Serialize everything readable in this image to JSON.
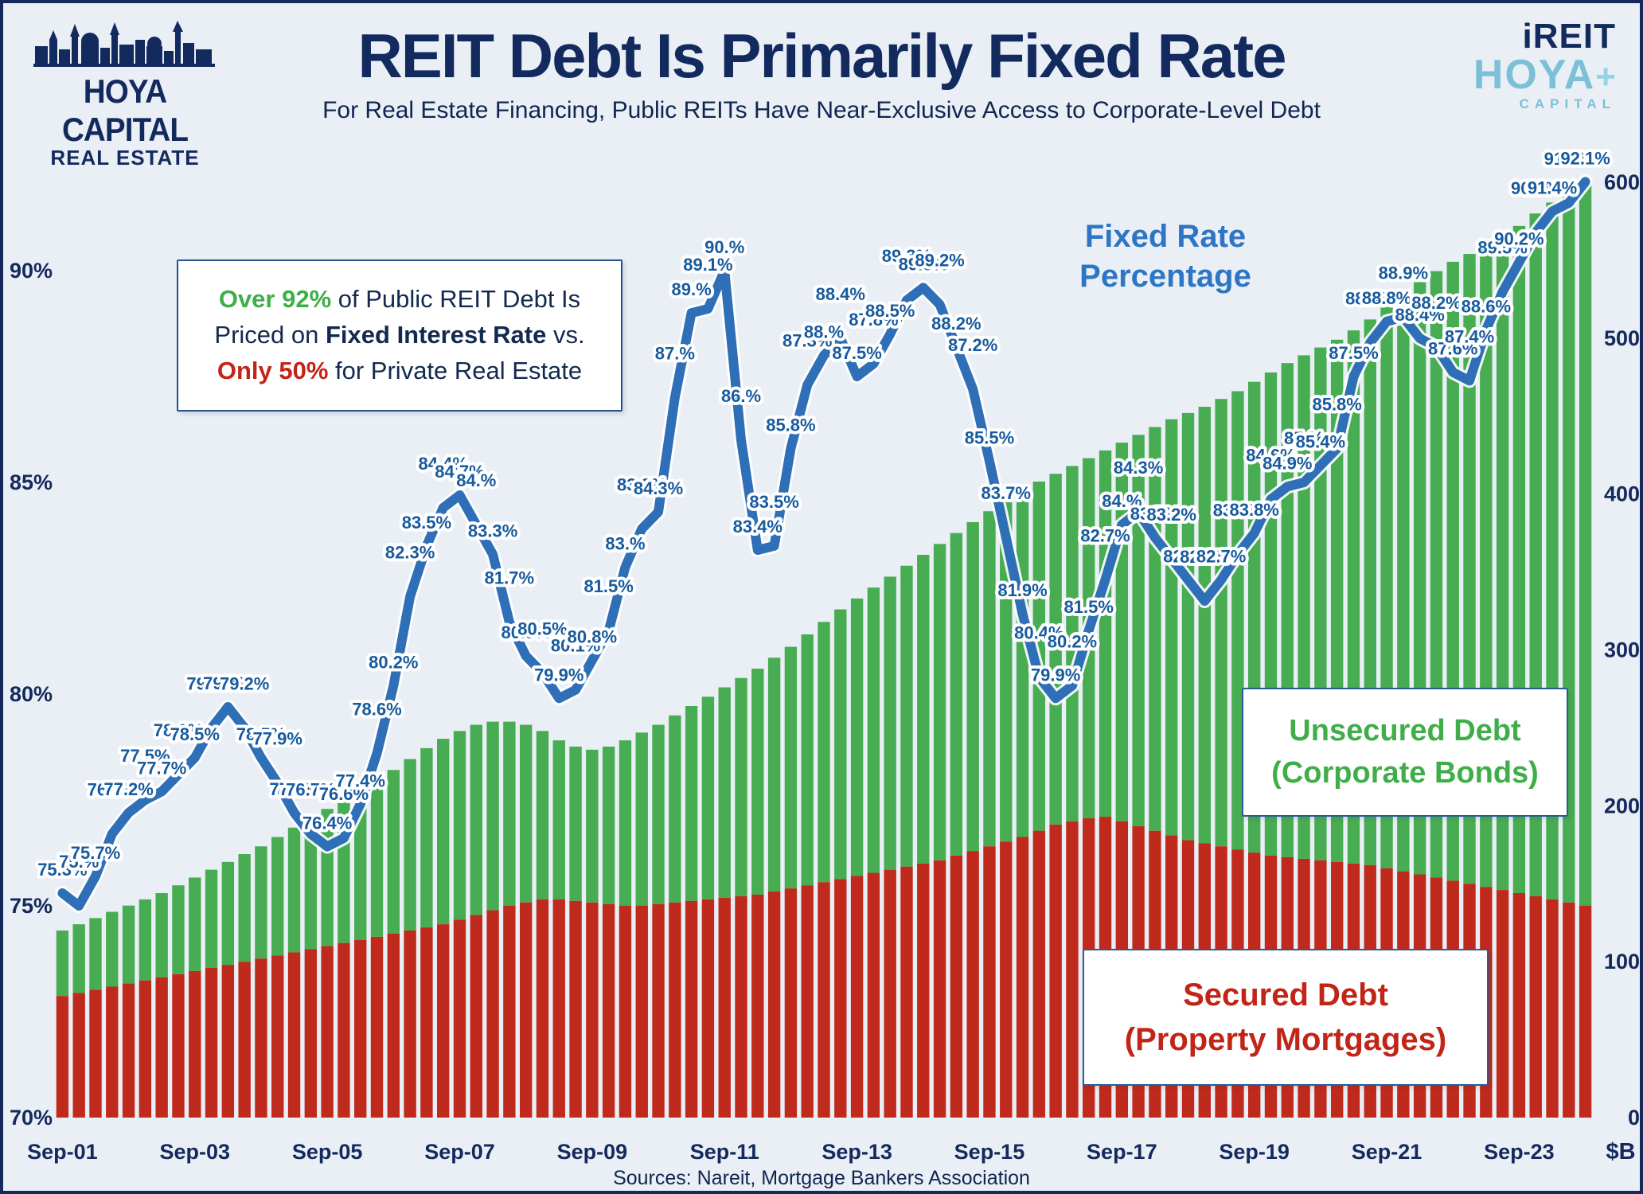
{
  "header": {
    "logo_left": {
      "name": "HOYA CAPITAL",
      "sub": "REAL ESTATE"
    },
    "title": "REIT Debt Is Primarily Fixed Rate",
    "subtitle": "For Real Estate Financing, Public REITs Have Near-Exclusive Access to Corporate-Level Debt",
    "logo_right": {
      "line1": "iREIT",
      "plus": "+",
      "line2": "HOYA",
      "line3": "CAPITAL"
    }
  },
  "annotation": {
    "l1a": "Over 92%",
    "l1b": " of Public REIT Debt Is",
    "l2a": "Priced on ",
    "l2b": "Fixed Interest Rate",
    "l2c": " vs.",
    "l3a": "Only 50%",
    "l3b": " for Private Real Estate"
  },
  "labels": {
    "fixed_rate_line1": "Fixed Rate",
    "fixed_rate_line2": "Percentage",
    "unsecured_line1": "Unsecured Debt",
    "unsecured_line2": "(Corporate Bonds)",
    "secured_line1": "Secured Debt",
    "secured_line2": "(Property Mortgages)"
  },
  "footer": {
    "sources": "Sources: Nareit, Mortgage Bankers Association"
  },
  "colors": {
    "line_blue": "#2f6fb7",
    "label_blue": "#175a9e",
    "bar_green": "#48ad52",
    "bar_red": "#c02a1d",
    "axis_navy": "#14295c"
  },
  "chart_data": {
    "type": "combo-stacked-bar-line",
    "title": "REIT Debt Is Primarily Fixed Rate",
    "x_period": "quarterly",
    "x_start": "Sep-01",
    "x_end": "Sep-24",
    "x_ticks": [
      {
        "label": "Sep-01",
        "index": 0
      },
      {
        "label": "Sep-03",
        "index": 8
      },
      {
        "label": "Sep-05",
        "index": 16
      },
      {
        "label": "Sep-07",
        "index": 24
      },
      {
        "label": "Sep-09",
        "index": 32
      },
      {
        "label": "Sep-11",
        "index": 40
      },
      {
        "label": "Sep-13",
        "index": 48
      },
      {
        "label": "Sep-15",
        "index": 56
      },
      {
        "label": "Sep-17",
        "index": 64
      },
      {
        "label": "Sep-19",
        "index": 72
      },
      {
        "label": "Sep-21",
        "index": 80
      },
      {
        "label": "Sep-23",
        "index": 88
      }
    ],
    "left_axis": {
      "range": [
        70,
        92.5
      ],
      "ticks": [
        {
          "label": "70%",
          "value": 70
        },
        {
          "label": "75%",
          "value": 75
        },
        {
          "label": "80%",
          "value": 80
        },
        {
          "label": "85%",
          "value": 85
        },
        {
          "label": "90%",
          "value": 90
        }
      ]
    },
    "right_axis": {
      "range": [
        0,
        610
      ],
      "unit": "$B",
      "ticks": [
        {
          "label": "0",
          "value": 0
        },
        {
          "label": "100",
          "value": 100
        },
        {
          "label": "200",
          "value": 200
        },
        {
          "label": "300",
          "value": 300
        },
        {
          "label": "400",
          "value": 400
        },
        {
          "label": "500",
          "value": 500
        },
        {
          "label": "600",
          "value": 600
        }
      ]
    },
    "line_series": {
      "name": "Fixed Rate Percentage",
      "color": "#2f6fb7",
      "values": [
        75.3,
        75.0,
        75.7,
        76.7,
        77.2,
        77.5,
        77.7,
        78.1,
        78.5,
        79.2,
        79.7,
        79.2,
        78.5,
        77.9,
        77.2,
        76.7,
        76.4,
        76.6,
        77.4,
        78.6,
        80.2,
        82.3,
        83.5,
        84.4,
        84.7,
        84.0,
        83.3,
        81.7,
        80.9,
        80.5,
        79.9,
        80.1,
        80.8,
        81.5,
        83.0,
        83.9,
        84.3,
        87.0,
        89.0,
        89.1,
        90.0,
        86.0,
        83.4,
        83.5,
        85.8,
        87.3,
        88.0,
        88.4,
        87.5,
        87.8,
        88.5,
        89.3,
        89.6,
        89.2,
        88.2,
        87.2,
        85.5,
        83.7,
        81.9,
        80.4,
        79.9,
        80.2,
        81.5,
        82.7,
        84.0,
        84.3,
        83.7,
        83.2,
        82.7,
        82.2,
        82.7,
        83.3,
        83.8,
        84.6,
        84.9,
        85.0,
        85.4,
        85.8,
        87.5,
        88.3,
        88.8,
        88.9,
        88.4,
        88.2,
        87.6,
        87.4,
        88.6,
        89.5,
        90.2,
        90.9,
        91.4,
        91.6,
        92.1
      ]
    },
    "bar_series": [
      {
        "name": "Secured Debt (Property Mortgages)",
        "color": "#c02a1d",
        "values": [
          78,
          80,
          82,
          84,
          86,
          88,
          90,
          92,
          94,
          96,
          98,
          100,
          102,
          104,
          106,
          108,
          110,
          112,
          114,
          116,
          118,
          120,
          122,
          124,
          127,
          130,
          133,
          136,
          138,
          140,
          140,
          139,
          138,
          137,
          136,
          136,
          137,
          138,
          139,
          140,
          141,
          142,
          143,
          145,
          147,
          149,
          151,
          153,
          155,
          157,
          159,
          161,
          163,
          165,
          168,
          171,
          174,
          177,
          180,
          184,
          188,
          190,
          192,
          193,
          190,
          187,
          184,
          181,
          178,
          176,
          174,
          172,
          170,
          168,
          167,
          166,
          165,
          164,
          163,
          162,
          160,
          158,
          156,
          154,
          152,
          150,
          148,
          146,
          144,
          142,
          140,
          138,
          136
        ]
      },
      {
        "name": "Unsecured Debt (Corporate Bonds)",
        "color": "#48ad52",
        "values": [
          42,
          44,
          46,
          48,
          50,
          52,
          54,
          57,
          60,
          63,
          66,
          69,
          72,
          76,
          80,
          84,
          88,
          92,
          96,
          100,
          105,
          110,
          115,
          119,
          121,
          122,
          121,
          118,
          114,
          108,
          102,
          99,
          98,
          101,
          106,
          111,
          115,
          120,
          125,
          130,
          135,
          140,
          145,
          150,
          155,
          161,
          167,
          173,
          178,
          183,
          188,
          193,
          198,
          203,
          207,
          211,
          215,
          219,
          222,
          224,
          225,
          228,
          231,
          235,
          243,
          251,
          259,
          267,
          274,
          280,
          287,
          294,
          302,
          310,
          317,
          323,
          329,
          335,
          342,
          350,
          360,
          370,
          380,
          389,
          397,
          404,
          411,
          419,
          428,
          438,
          447,
          455,
          463
        ]
      }
    ]
  }
}
